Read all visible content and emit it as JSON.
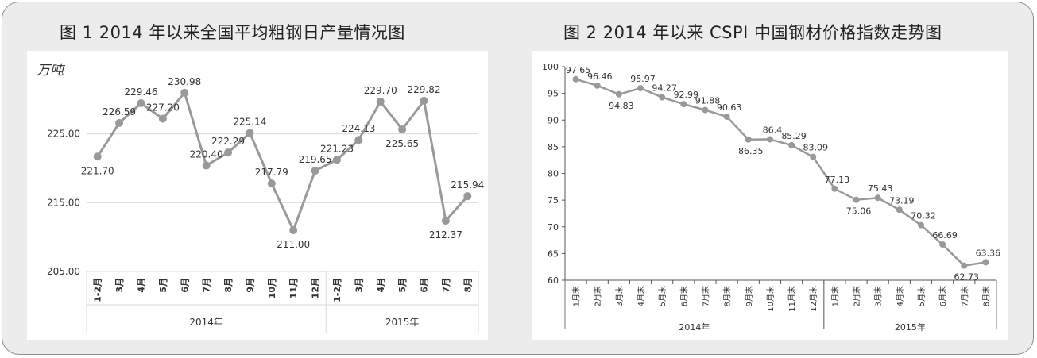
{
  "chart_data": [
    {
      "type": "line",
      "title": "图 1 2014 年以来全国平均粗钢日产量情况图",
      "ylabel": "万吨",
      "ylim": [
        205,
        235
      ],
      "yticks": [
        "205.00",
        "215.00",
        "225.00"
      ],
      "grid": true,
      "color": "#999999",
      "categories": [
        "1-2月",
        "3月",
        "4月",
        "5月",
        "6月",
        "7月",
        "8月",
        "9月",
        "10月",
        "11月",
        "12月",
        "1-2月",
        "3月",
        "4月",
        "5月",
        "6月",
        "7月",
        "8月"
      ],
      "groups": [
        {
          "label": "2014年",
          "count": 11
        },
        {
          "label": "2015年",
          "count": 7
        }
      ],
      "values": [
        221.7,
        226.59,
        229.46,
        227.2,
        230.98,
        220.4,
        222.29,
        225.14,
        217.79,
        211.0,
        219.65,
        221.23,
        224.13,
        229.7,
        225.65,
        229.82,
        212.37,
        215.94
      ],
      "labels": [
        "221.70",
        "226.59",
        "229.46",
        "227.20",
        "230.98",
        "220.40",
        "222.29",
        "225.14",
        "217.79",
        "211.00",
        "219.65",
        "221.23",
        "224.13",
        "229.70",
        "225.65",
        "229.82",
        "212.37",
        "215.94"
      ]
    },
    {
      "type": "line",
      "title": "图 2 2014 年以来 CSPI 中国钢材价格指数走势图",
      "ylim": [
        60,
        100
      ],
      "yticks": [
        "60",
        "65",
        "70",
        "75",
        "80",
        "85",
        "90",
        "95",
        "100"
      ],
      "grid": false,
      "color": "#999999",
      "categories": [
        "1月末",
        "2月末",
        "3月末",
        "4月末",
        "5月末",
        "6月末",
        "7月末",
        "8月末",
        "9月末",
        "10月末",
        "11月末",
        "12月末",
        "1月末",
        "2月末",
        "3月末",
        "4月末",
        "5月末",
        "6月末",
        "7月末",
        "8月末"
      ],
      "groups": [
        {
          "label": "2014年",
          "count": 12
        },
        {
          "label": "2015年",
          "count": 8
        }
      ],
      "values": [
        97.65,
        96.46,
        94.83,
        95.97,
        94.27,
        92.99,
        91.88,
        90.63,
        86.35,
        86.4,
        85.29,
        83.09,
        77.13,
        75.06,
        75.43,
        73.19,
        70.32,
        66.69,
        62.73,
        63.36
      ],
      "labels": [
        "97.65",
        "96.46",
        "94.83",
        "95.97",
        "94.27",
        "92.99",
        "91.88",
        "90.63",
        "86.35",
        "86.4",
        "85.29",
        "83.09",
        "77.13",
        "75.06",
        "75.43",
        "73.19",
        "70.32",
        "66.69",
        "62.73",
        "63.36"
      ]
    }
  ]
}
